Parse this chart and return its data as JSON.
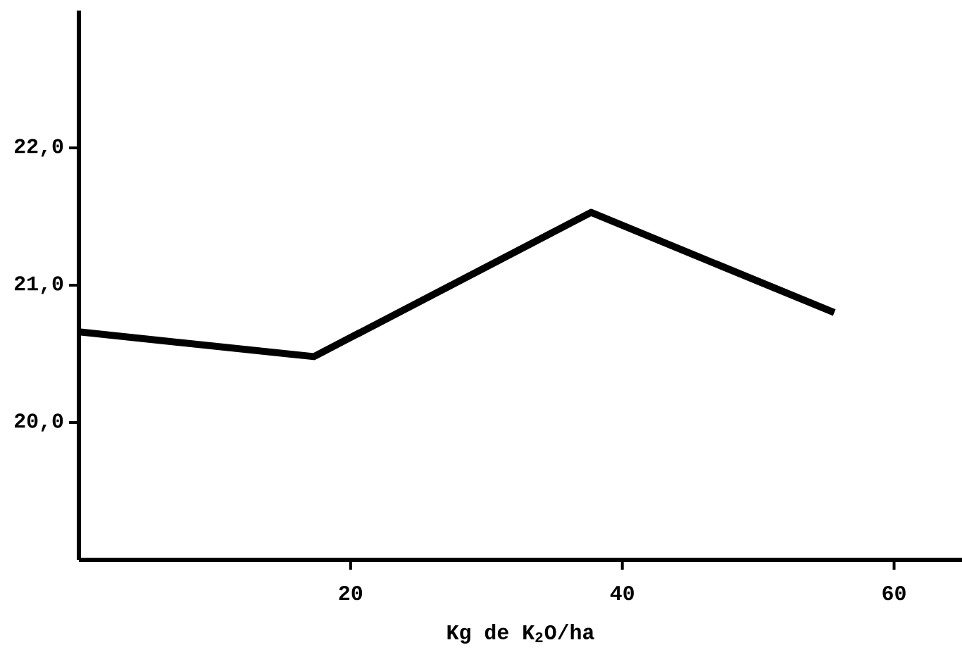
{
  "chart_data": {
    "type": "line",
    "xlabel": "Kg de K$_{2}$O/ha",
    "x": [
      0,
      17.3,
      37.7,
      55.6
    ],
    "values": [
      20.66,
      20.48,
      21.53,
      20.8
    ],
    "color": "#000000",
    "xlim": [
      0,
      65
    ],
    "ylim": [
      19,
      23
    ],
    "xticks": [
      20,
      40,
      60
    ],
    "yticks": [
      {
        "value": 20,
        "label": "20,0"
      },
      {
        "value": 21,
        "label": "21,0"
      },
      {
        "value": 22,
        "label": "22,0"
      }
    ]
  }
}
